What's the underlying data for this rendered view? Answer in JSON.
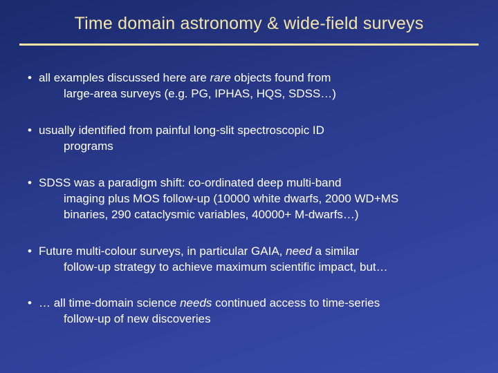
{
  "title": "Time domain astronomy & wide-field surveys",
  "bullets": [
    {
      "line1_a": "all examples discussed here are ",
      "line1_em": "rare",
      "line1_b": " objects found from",
      "line2": "large-area surveys (e.g. PG, IPHAS, HQS, SDSS…)"
    },
    {
      "line1": "usually identified from painful long-slit spectroscopic ID",
      "line2": "programs"
    },
    {
      "line1": "SDSS was a paradigm shift: co-ordinated deep multi-band",
      "line2": "imaging plus MOS follow-up (10000 white dwarfs, 2000 WD+MS",
      "line3": "binaries, 290 cataclysmic variables, 40000+ M-dwarfs…)"
    },
    {
      "line1_a": "Future multi-colour surveys, in particular GAIA, ",
      "line1_em": "need ",
      "line1_b": " a similar",
      "line2": "follow-up strategy to achieve maximum scientific impact, but…"
    },
    {
      "line1_a": "… all time-domain science ",
      "line1_em": "needs",
      "line1_b": " continued access to time-series",
      "line2": "follow-up of new discoveries"
    }
  ],
  "colors": {
    "title": "#f5e6a8",
    "divider": "#f5e6a8",
    "text": "#ffffff",
    "bg_start": "#1a2a6c",
    "bg_mid": "#2a3a8c",
    "bg_end": "#3a4aac"
  }
}
